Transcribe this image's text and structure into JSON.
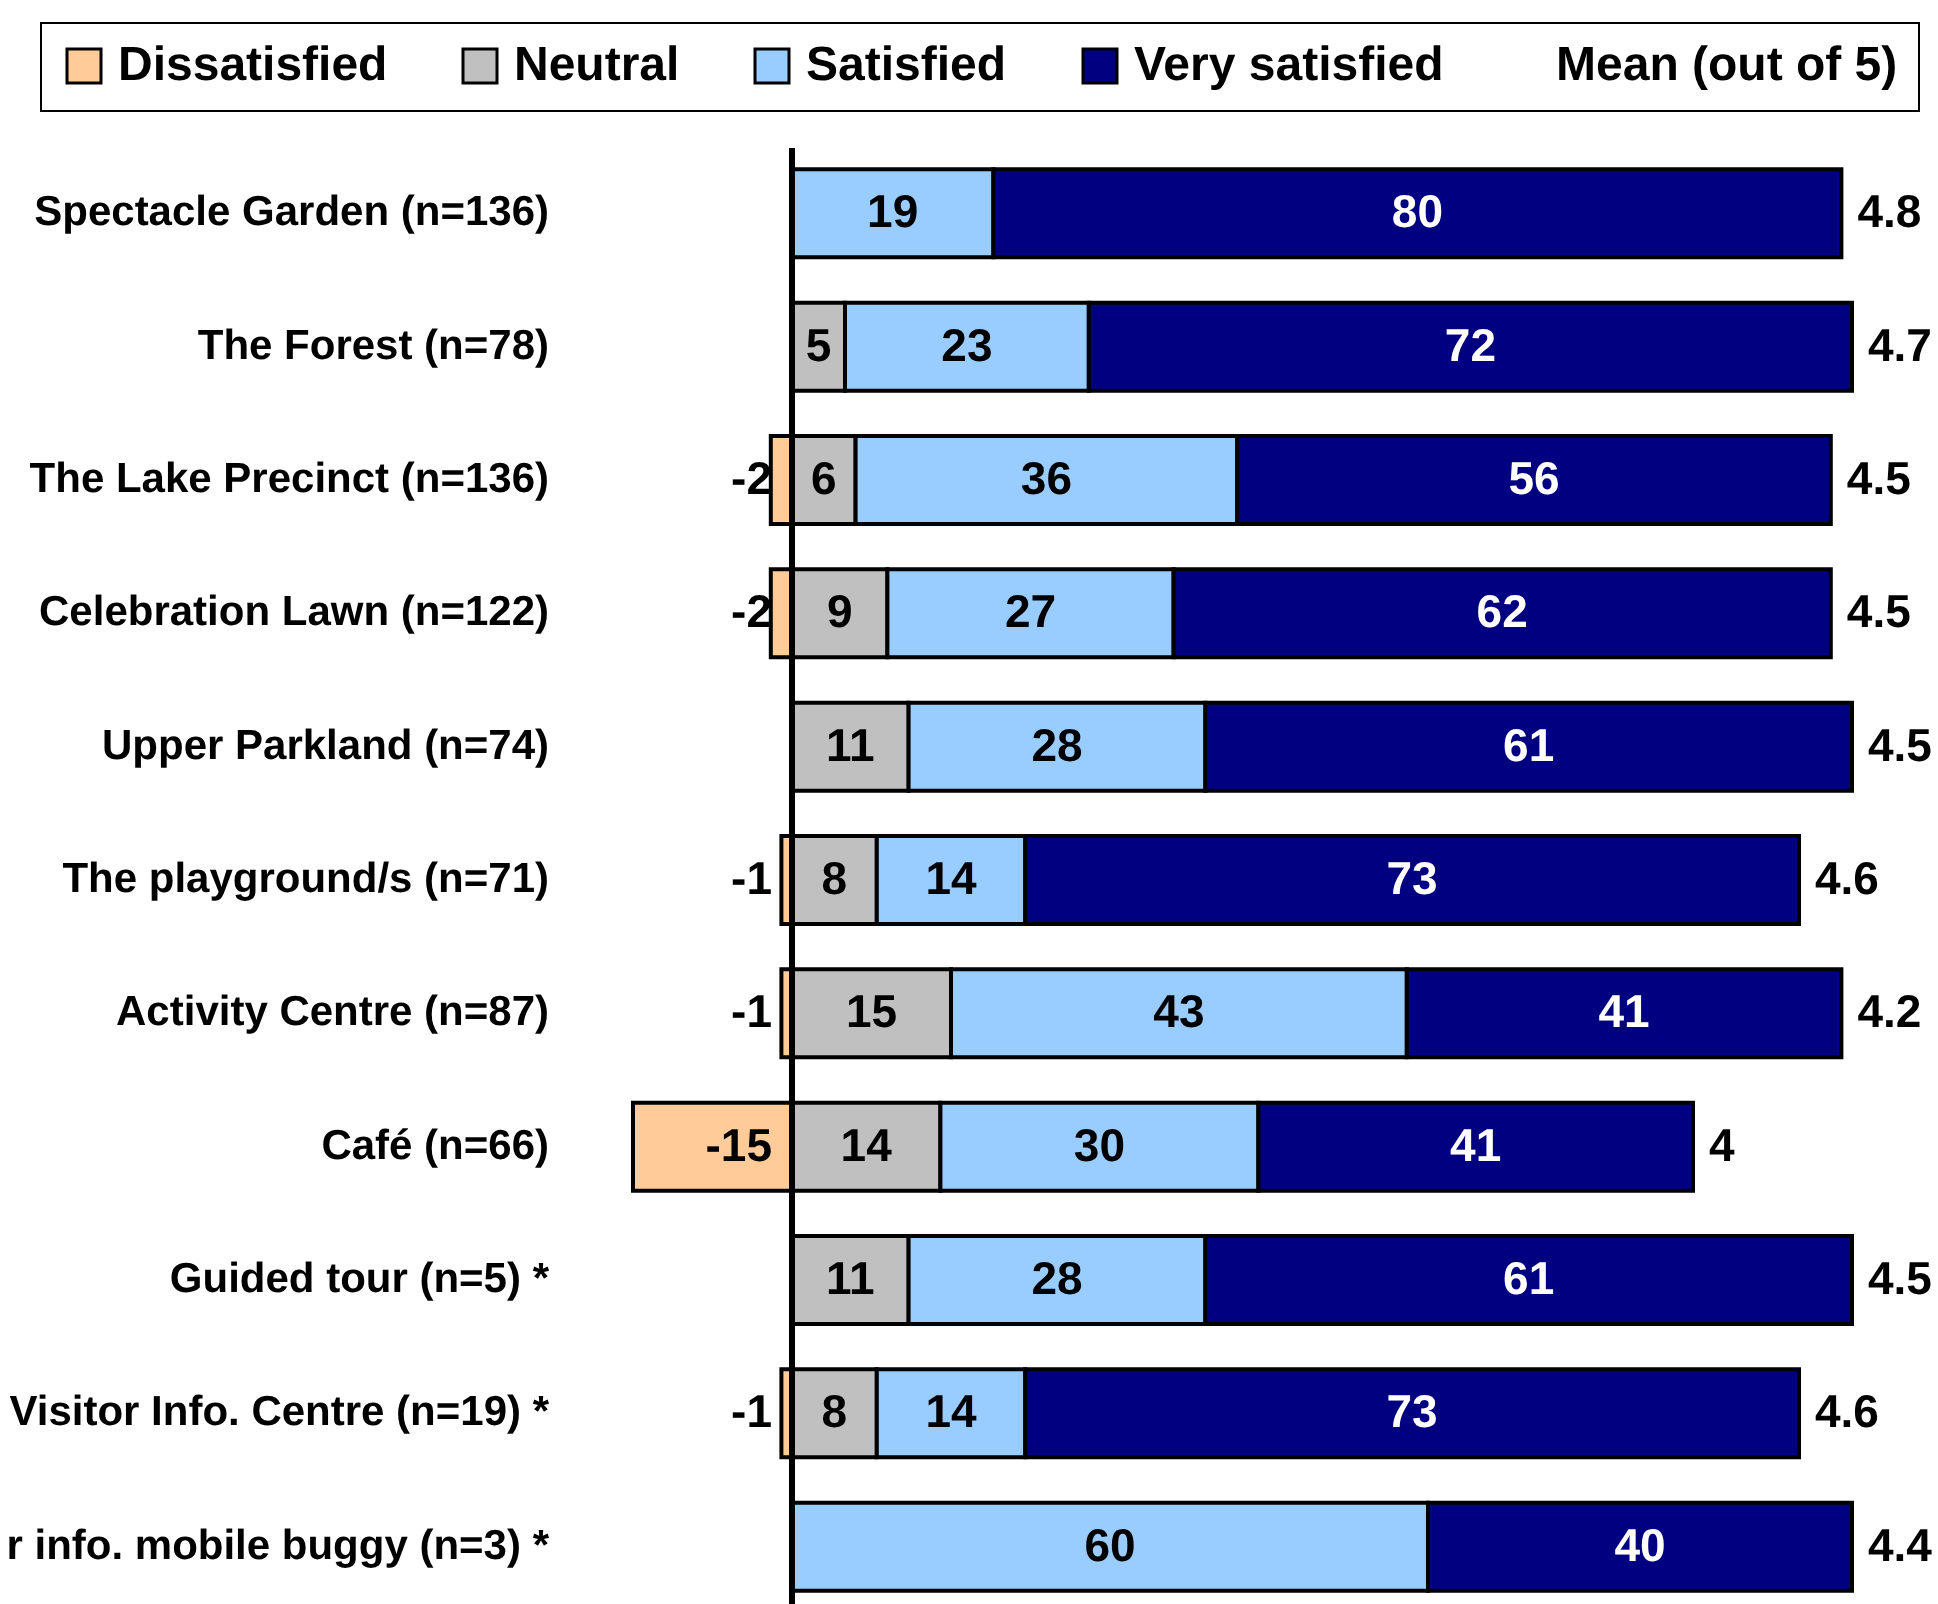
{
  "chart_data": {
    "type": "bar",
    "orientation": "horizontal",
    "stacked": true,
    "categories": [
      "Spectacle Garden (n=136)",
      "The Forest (n=78)",
      "The Lake Precinct (n=136)",
      "Celebration Lawn (n=122)",
      "Upper Parkland (n=74)",
      "The playground/s (n=71)",
      "Activity Centre (n=87)",
      "Café (n=66)",
      "Guided tour (n=5) *",
      "Visitor Info. Centre (n=19) *",
      "r info. mobile buggy (n=3) *"
    ],
    "series": [
      {
        "name": "Dissatisfied",
        "color": "#ffcc99",
        "values": [
          null,
          null,
          -2,
          -2,
          null,
          -1,
          -1,
          -15,
          null,
          -1,
          null
        ]
      },
      {
        "name": "Neutral",
        "color": "#c0c0c0",
        "values": [
          null,
          5,
          6,
          9,
          11,
          8,
          15,
          14,
          11,
          8,
          null
        ]
      },
      {
        "name": "Satisfied",
        "color": "#99ccff",
        "values": [
          19,
          23,
          36,
          27,
          28,
          14,
          43,
          30,
          28,
          14,
          60
        ]
      },
      {
        "name": "Very satisfied",
        "color": "#000080",
        "values": [
          80,
          72,
          56,
          62,
          61,
          73,
          41,
          41,
          61,
          73,
          40
        ]
      }
    ],
    "tick_labels": "y",
    "data_labels": true,
    "legend": "top",
    "legend_title": "Mean (out of 5)",
    "ref_lines": [
      {
        "axis": "x",
        "value": 0,
        "color": "#000000"
      }
    ],
    "annotations": [
      {
        "text": "4.8",
        "x": 99,
        "y": "Spectacle Garden (n=136)"
      },
      {
        "text": "4.7",
        "x": 100,
        "y": "The Forest (n=78)"
      },
      {
        "text": "4.5",
        "x": 98,
        "y": "The Lake Precinct (n=136)"
      },
      {
        "text": "4.5",
        "x": 98,
        "y": "Celebration Lawn (n=122)"
      },
      {
        "text": "4.5",
        "x": 100,
        "y": "Upper Parkland (n=74)"
      },
      {
        "text": "4.6",
        "x": 95,
        "y": "The playground/s (n=71)"
      },
      {
        "text": "4.2",
        "x": 99,
        "y": "Activity Centre (n=87)"
      },
      {
        "text": "4",
        "x": 85,
        "y": "Café (n=66)"
      },
      {
        "text": "4.5",
        "x": 100,
        "y": "Guided tour (n=5) *"
      },
      {
        "text": "4.6",
        "x": 95,
        "y": "Visitor Info. Centre (n=19) *"
      },
      {
        "text": "4.4",
        "x": 100,
        "y": "r info. mobile buggy (n=3) *"
      }
    ]
  }
}
